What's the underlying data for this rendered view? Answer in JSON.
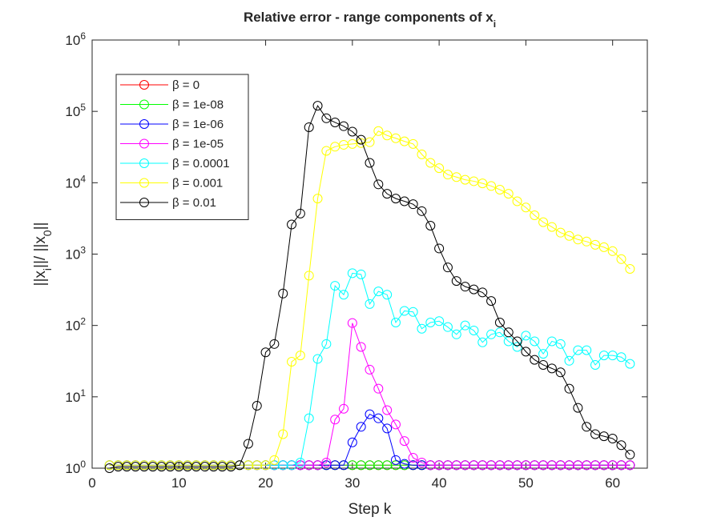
{
  "chart_data": {
    "type": "line",
    "title": "Relative error - range components of x_i",
    "xlabel": "Step k",
    "ylabel": "||x_i||/ ||x_0||",
    "log_y": true,
    "legend": "upper left",
    "xlim": [
      0,
      64
    ],
    "xticks": [
      0,
      10,
      20,
      30,
      40,
      50,
      60
    ],
    "ylim": [
      1,
      1000000
    ],
    "yticks": [
      {
        "value": 1,
        "label": "10^0"
      },
      {
        "value": 10,
        "label": "10^1"
      },
      {
        "value": 100,
        "label": "10^2"
      },
      {
        "value": 1000,
        "label": "10^3"
      },
      {
        "value": 10000,
        "label": "10^4"
      },
      {
        "value": 100000,
        "label": "10^5"
      },
      {
        "value": 1000000,
        "label": "10^6"
      }
    ],
    "x": [
      2,
      3,
      4,
      5,
      6,
      7,
      8,
      9,
      10,
      11,
      12,
      13,
      14,
      15,
      16,
      17,
      18,
      19,
      20,
      21,
      22,
      23,
      24,
      25,
      26,
      27,
      28,
      29,
      30,
      31,
      32,
      33,
      34,
      35,
      36,
      37,
      38,
      39,
      40,
      41,
      42,
      43,
      44,
      45,
      46,
      47,
      48,
      49,
      50,
      51,
      52,
      53,
      54,
      55,
      56,
      57,
      58,
      59,
      60,
      61,
      62
    ],
    "series": [
      {
        "name": "β = 0",
        "color": "#ff0000",
        "values": [
          1.1,
          1.1,
          1.1,
          1.1,
          1.1,
          1.1,
          1.1,
          1.1,
          1.1,
          1.1,
          1.1,
          1.1,
          1.1,
          1.1,
          1.1,
          1.1,
          1.1,
          1.1,
          1.1,
          1.1,
          1.1,
          1.1,
          1.1,
          1.1,
          1.1,
          1.1,
          1.1,
          1.1,
          1.1,
          1.1,
          1.1,
          1.1,
          1.1,
          1.1,
          1.1,
          1.1,
          1.1,
          1.1,
          1.1,
          1.1,
          1.1,
          1.1,
          1.1,
          1.1,
          1.1,
          1.1,
          1.1,
          1.1,
          1.1,
          1.1,
          1.1,
          1.1,
          1.1,
          1.1,
          1.1,
          1.1,
          1.1,
          1.1,
          1.1,
          1.1,
          1.1
        ]
      },
      {
        "name": "β = 1e-08",
        "color": "#00ff00",
        "values": [
          1.1,
          1.1,
          1.1,
          1.1,
          1.1,
          1.1,
          1.1,
          1.1,
          1.1,
          1.1,
          1.1,
          1.1,
          1.1,
          1.1,
          1.1,
          1.1,
          1.1,
          1.1,
          1.1,
          1.1,
          1.1,
          1.1,
          1.1,
          1.1,
          1.1,
          1.1,
          1.1,
          1.1,
          1.1,
          1.1,
          1.1,
          1.1,
          1.1,
          1.1,
          1.1,
          1.1,
          1.1,
          1.1,
          1.1,
          1.1,
          1.1,
          1.1,
          1.1,
          1.1,
          1.1,
          1.1,
          1.1,
          1.1,
          1.1,
          1.1,
          1.1,
          1.1,
          1.1,
          1.1,
          1.1,
          1.1,
          1.1,
          1.1,
          1.1,
          1.1,
          1.1
        ]
      },
      {
        "name": "β = 1e-06",
        "color": "#0000ff",
        "values": [
          1.1,
          1.1,
          1.1,
          1.1,
          1.1,
          1.1,
          1.1,
          1.1,
          1.1,
          1.1,
          1.1,
          1.1,
          1.1,
          1.1,
          1.1,
          1.1,
          1.1,
          1.1,
          1.1,
          1.1,
          1.1,
          1.1,
          1.1,
          1.1,
          1.1,
          1.1,
          1.1,
          1.1,
          2.3,
          3.8,
          5.7,
          5,
          3.6,
          1.3,
          1.15,
          1.1,
          1.1,
          1.1,
          1.1,
          1.1,
          1.1,
          1.1,
          1.1,
          1.1,
          1.1,
          1.1,
          1.1,
          1.1,
          1.1,
          1.1,
          1.1,
          1.1,
          1.1,
          1.1,
          1.1,
          1.1,
          1.1,
          1.1,
          1.1,
          1.1,
          1.1
        ]
      },
      {
        "name": "β = 1e-05",
        "color": "#ff00ff",
        "values": [
          1.1,
          1.1,
          1.1,
          1.1,
          1.1,
          1.1,
          1.1,
          1.1,
          1.1,
          1.1,
          1.1,
          1.1,
          1.1,
          1.1,
          1.1,
          1.1,
          1.1,
          1.1,
          1.1,
          1.1,
          1.1,
          1.1,
          1.1,
          1.1,
          1.1,
          1.2,
          4.8,
          6.8,
          108,
          50,
          24,
          13,
          6.5,
          4.1,
          2.4,
          1.4,
          1.2,
          1.1,
          1.1,
          1.1,
          1.1,
          1.1,
          1.1,
          1.1,
          1.1,
          1.1,
          1.1,
          1.1,
          1.1,
          1.1,
          1.1,
          1.1,
          1.1,
          1.1,
          1.1,
          1.1,
          1.1,
          1.1,
          1.1,
          1.1,
          1.1
        ]
      },
      {
        "name": "β = 0.0001",
        "color": "#00ffff",
        "values": [
          1.1,
          1.1,
          1.1,
          1.1,
          1.1,
          1.1,
          1.1,
          1.1,
          1.1,
          1.1,
          1.1,
          1.1,
          1.1,
          1.1,
          1.1,
          1.1,
          1.1,
          1.1,
          1.1,
          1.1,
          1.1,
          1.1,
          1.2,
          5,
          34,
          55,
          360,
          270,
          540,
          520,
          200,
          300,
          270,
          110,
          160,
          155,
          90,
          110,
          115,
          95,
          75,
          100,
          85,
          58,
          75,
          80,
          60,
          50,
          72,
          60,
          40,
          60,
          55,
          32,
          45,
          45,
          28,
          38,
          38,
          36,
          29
        ]
      },
      {
        "name": "β = 0.001",
        "color": "#ffff00",
        "values": [
          1.1,
          1.1,
          1.1,
          1.1,
          1.1,
          1.1,
          1.1,
          1.1,
          1.1,
          1.1,
          1.1,
          1.1,
          1.1,
          1.1,
          1.1,
          1.1,
          1.1,
          1.1,
          1.1,
          1.3,
          3,
          31,
          38,
          500,
          6000,
          28000,
          32000,
          34000,
          35000,
          36000,
          37000,
          53000,
          46000,
          42000,
          38000,
          35000,
          25000,
          19000,
          16000,
          13000,
          12000,
          11000,
          10500,
          9800,
          9000,
          8000,
          7000,
          5500,
          4500,
          3500,
          2800,
          2400,
          2000,
          1800,
          1600,
          1500,
          1350,
          1250,
          1100,
          850,
          620
        ]
      },
      {
        "name": "β = 0.01",
        "color": "#000000",
        "values": [
          1.0,
          1.05,
          1.05,
          1.05,
          1.05,
          1.05,
          1.05,
          1.05,
          1.05,
          1.05,
          1.05,
          1.05,
          1.05,
          1.05,
          1.05,
          1.1,
          2.2,
          7.5,
          42,
          55,
          280,
          2600,
          3700,
          60000,
          120000,
          80000,
          70000,
          62000,
          52000,
          40000,
          19000,
          9500,
          7000,
          6000,
          5500,
          5000,
          4000,
          2500,
          1200,
          650,
          420,
          350,
          320,
          290,
          220,
          110,
          80,
          60,
          43,
          33,
          28,
          25,
          22,
          13,
          7,
          3.8,
          3,
          2.8,
          2.6,
          2.1,
          1.55
        ]
      }
    ]
  }
}
